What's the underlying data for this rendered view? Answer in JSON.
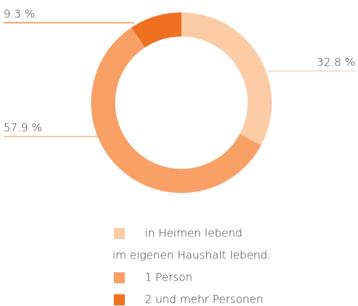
{
  "chart_data": {
    "type": "donut",
    "categories": [
      "in Heimen lebend",
      "1 Person",
      "2 und mehr Personen"
    ],
    "values": [
      32.8,
      57.9,
      9.3
    ],
    "value_labels": [
      "32.8 %",
      "57.9 %",
      "9.3 %"
    ],
    "colors": [
      "#fccca6",
      "#f9a066",
      "#f07022"
    ],
    "legend_subheading": "im eigenen Haushalt lebend:"
  }
}
